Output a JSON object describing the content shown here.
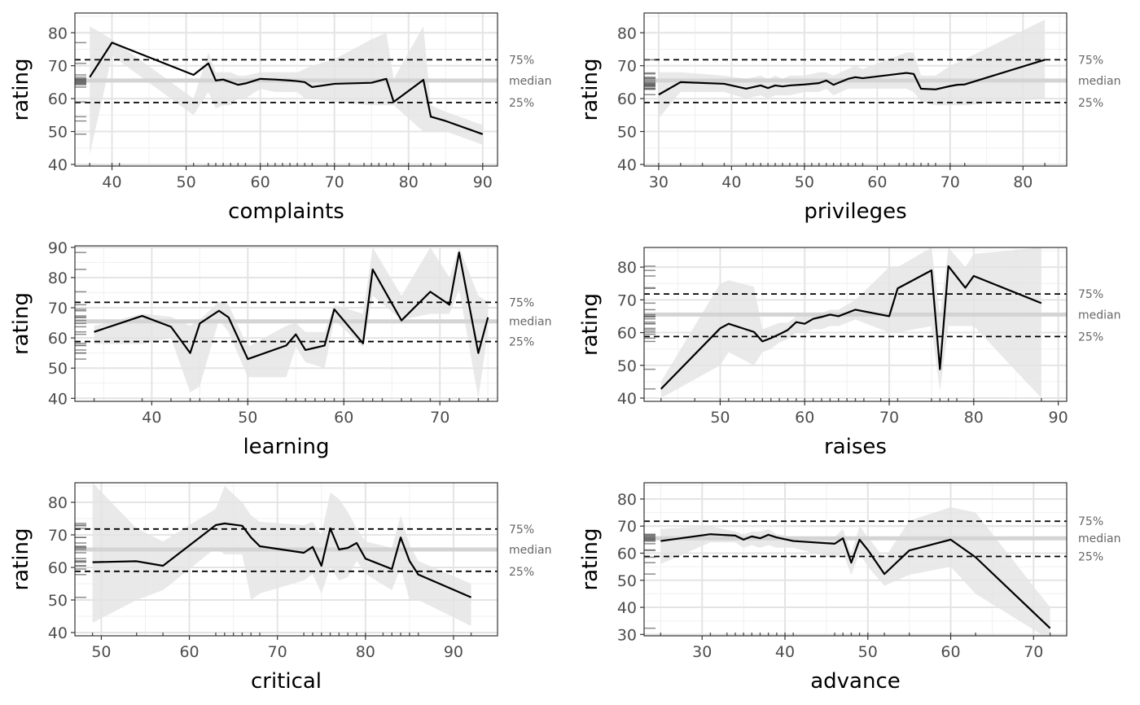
{
  "chart_data": [
    {
      "type": "line",
      "xlabel": "complaints",
      "ylabel": "rating",
      "xlim": [
        35,
        92
      ],
      "ylim": [
        39.5,
        86
      ],
      "xticks": [
        40,
        50,
        60,
        70,
        80,
        90
      ],
      "yticks": [
        40,
        50,
        60,
        70,
        80
      ],
      "ref_lines": [
        {
          "label": "75%",
          "value": 71.8
        },
        {
          "label": "median",
          "value": 65.5
        },
        {
          "label": "25%",
          "value": 58.8
        }
      ],
      "x": [
        37,
        40,
        51,
        53,
        54,
        55,
        56,
        57,
        58,
        60,
        62,
        64,
        65,
        66,
        67,
        70,
        75,
        77,
        78,
        82,
        83,
        85,
        90
      ],
      "y": [
        66.5,
        77,
        67.2,
        70.7,
        65.5,
        65.8,
        65,
        64.2,
        64.6,
        66,
        65.8,
        65.5,
        65.3,
        65,
        63.5,
        64.5,
        64.8,
        66,
        59,
        65.7,
        54.5,
        53.2,
        49.2
      ],
      "band_upper": [
        82,
        78,
        60,
        74,
        68,
        68,
        68,
        67,
        67,
        68,
        68,
        68,
        68,
        69,
        70,
        72,
        78,
        80,
        66,
        82,
        58,
        56,
        52
      ],
      "band_lower": [
        43,
        73,
        55,
        62,
        57,
        58,
        58,
        60,
        60,
        63,
        62,
        62,
        62,
        60,
        60,
        59,
        58,
        58,
        58,
        50,
        50,
        50,
        46
      ],
      "rug_x": [
        37,
        40,
        41,
        51,
        53,
        54,
        55,
        56,
        57,
        58,
        60,
        61,
        62,
        63,
        64,
        65,
        66,
        67,
        69,
        70,
        72,
        74,
        75,
        76,
        77,
        78,
        80,
        82,
        83,
        85,
        90
      ]
    },
    {
      "type": "line",
      "xlabel": "privileges",
      "ylabel": "rating",
      "xlim": [
        28,
        86
      ],
      "ylim": [
        39.5,
        86
      ],
      "xticks": [
        30,
        40,
        50,
        60,
        70,
        80
      ],
      "yticks": [
        40,
        50,
        60,
        70,
        80
      ],
      "ref_lines": [
        {
          "label": "75%",
          "value": 71.8
        },
        {
          "label": "median",
          "value": 65.5
        },
        {
          "label": "25%",
          "value": 58.8
        }
      ],
      "x": [
        30,
        33,
        39,
        42,
        44,
        45,
        46,
        47,
        48,
        50,
        52,
        53,
        54,
        56,
        57,
        58,
        64,
        65,
        66,
        68,
        70,
        71,
        72,
        83
      ],
      "y": [
        61.2,
        65,
        64.5,
        63,
        64,
        63.2,
        64,
        63.7,
        64,
        64.3,
        64.7,
        65.5,
        64.2,
        66,
        66.5,
        66.2,
        67.8,
        67.5,
        63,
        62.8,
        63.8,
        64.2,
        64.3,
        71.8
      ],
      "band_upper": [
        68,
        68,
        67,
        66,
        67,
        66,
        67,
        66,
        67,
        67,
        68,
        68,
        67,
        69,
        70,
        69,
        74,
        74,
        67,
        67,
        70,
        71,
        72,
        84
      ],
      "band_lower": [
        54,
        62,
        62,
        60,
        61,
        60,
        61,
        61,
        61,
        62,
        62,
        63,
        61,
        63,
        63,
        63,
        63,
        62,
        59,
        58,
        58,
        58,
        58,
        60
      ],
      "rug_x": [
        30,
        33,
        36,
        39,
        42,
        43,
        44,
        45,
        46,
        47,
        48,
        49,
        50,
        51,
        52,
        53,
        54,
        55,
        56,
        57,
        58,
        61,
        63,
        64,
        65,
        66,
        67,
        68,
        70,
        72,
        83
      ]
    },
    {
      "type": "line",
      "xlabel": "learning",
      "ylabel": "rating",
      "xlim": [
        32,
        76
      ],
      "ylim": [
        39,
        90.5
      ],
      "xticks": [
        40,
        50,
        60,
        70
      ],
      "yticks": [
        40,
        50,
        60,
        70,
        80,
        90
      ],
      "ref_lines": [
        {
          "label": "75%",
          "value": 71.8
        },
        {
          "label": "median",
          "value": 65.5
        },
        {
          "label": "25%",
          "value": 58.8
        }
      ],
      "x": [
        34,
        39,
        42,
        44,
        45,
        47,
        48,
        50,
        54,
        55,
        56,
        58,
        59,
        62,
        63,
        66,
        69,
        71,
        72,
        74,
        75
      ],
      "y": [
        62,
        67.3,
        63.7,
        55,
        64.8,
        69,
        66.8,
        53,
        57.5,
        61.2,
        56,
        57.5,
        69.5,
        58.2,
        82.7,
        65.8,
        75.3,
        71,
        88.3,
        55,
        66.8
      ],
      "band_upper": [
        64,
        68,
        67,
        64,
        66,
        72,
        71,
        57,
        64,
        65,
        62,
        62,
        71,
        68,
        90,
        74,
        90,
        80,
        90,
        74,
        72
      ],
      "band_lower": [
        58,
        58,
        60,
        42,
        44,
        66,
        62,
        47,
        47,
        57,
        52,
        50,
        66,
        57,
        74,
        66,
        68,
        68,
        76,
        40,
        62
      ],
      "rug_x": [
        34,
        39,
        42,
        44,
        45,
        47,
        48,
        49,
        50,
        54,
        55,
        56,
        57,
        58,
        59,
        60,
        62,
        63,
        64,
        66,
        67,
        69,
        71,
        72,
        74,
        75
      ]
    },
    {
      "type": "line",
      "xlabel": "raises",
      "ylabel": "rating",
      "xlim": [
        41,
        91
      ],
      "ylim": [
        39,
        86
      ],
      "xticks": [
        50,
        60,
        70,
        80,
        90
      ],
      "yticks": [
        40,
        50,
        60,
        70,
        80
      ],
      "ref_lines": [
        {
          "label": "75%",
          "value": 71.8
        },
        {
          "label": "median",
          "value": 65.5
        },
        {
          "label": "25%",
          "value": 58.8
        }
      ],
      "x": [
        43,
        50,
        51,
        54,
        55,
        56,
        57,
        58,
        59,
        60,
        61,
        62,
        63,
        64,
        66,
        70,
        71,
        75,
        76,
        77,
        79,
        80,
        88
      ],
      "y": [
        42.8,
        61.3,
        62.7,
        60.2,
        57.3,
        58.3,
        59.5,
        60.8,
        63.2,
        62.7,
        64.2,
        64.8,
        65.5,
        65,
        67,
        65,
        73.5,
        79,
        48.8,
        80.3,
        73.7,
        77.3,
        69
      ],
      "band_upper": [
        45,
        75,
        76,
        74,
        61,
        62,
        63,
        63,
        65,
        65,
        66,
        66,
        67,
        67,
        70,
        80,
        80,
        86,
        65,
        86,
        80,
        84,
        86
      ],
      "band_lower": [
        40,
        50,
        54,
        50,
        54,
        55,
        57,
        58,
        60,
        60,
        61,
        61,
        62,
        62,
        64,
        60,
        60,
        62,
        42,
        62,
        62,
        62,
        40
      ],
      "rug_x": [
        43,
        47,
        50,
        51,
        53,
        54,
        55,
        56,
        57,
        58,
        59,
        60,
        61,
        62,
        63,
        64,
        65,
        66,
        67,
        69,
        70,
        71,
        75,
        76,
        77,
        78,
        80,
        88
      ]
    },
    {
      "type": "line",
      "xlabel": "critical",
      "ylabel": "rating",
      "xlim": [
        47,
        95
      ],
      "ylim": [
        39,
        86
      ],
      "xticks": [
        50,
        60,
        70,
        80,
        90
      ],
      "yticks": [
        40,
        50,
        60,
        70,
        80
      ],
      "ref_lines": [
        {
          "label": "75%",
          "value": 71.8
        },
        {
          "label": "median",
          "value": 65.5
        },
        {
          "label": "25%",
          "value": 58.8
        }
      ],
      "x": [
        49,
        54,
        57,
        63,
        64,
        66,
        67,
        68,
        73,
        74,
        75,
        76,
        77,
        78,
        79,
        80,
        83,
        84,
        85,
        86,
        92
      ],
      "y": [
        61.6,
        61.9,
        60.5,
        73,
        73.5,
        72.8,
        69.2,
        66.5,
        64.5,
        66.3,
        60.5,
        72,
        65.5,
        66,
        67.5,
        62.7,
        59.5,
        69.2,
        62,
        57.8,
        50.8
      ],
      "band_upper": [
        86,
        72,
        68,
        78,
        85,
        80,
        76,
        74,
        73,
        74,
        70,
        83,
        81,
        77,
        72,
        68,
        66,
        76,
        67,
        62,
        55
      ],
      "band_lower": [
        43,
        50,
        53,
        66,
        64,
        64,
        50,
        52,
        56,
        58,
        52,
        60,
        56,
        57,
        62,
        58,
        53,
        60,
        50,
        50,
        42
      ],
      "rug_x": [
        49,
        54,
        57,
        63,
        64,
        65,
        66,
        67,
        68,
        73,
        74,
        75,
        76,
        77,
        78,
        79,
        80,
        82,
        83,
        84,
        85,
        86,
        92
      ]
    },
    {
      "type": "line",
      "xlabel": "advance",
      "ylabel": "rating",
      "xlim": [
        23,
        74
      ],
      "ylim": [
        29.5,
        86
      ],
      "xticks": [
        30,
        40,
        50,
        60,
        70
      ],
      "yticks": [
        30,
        40,
        50,
        60,
        70,
        80
      ],
      "ref_lines": [
        {
          "label": "75%",
          "value": 71.8
        },
        {
          "label": "median",
          "value": 65.5
        },
        {
          "label": "25%",
          "value": 58.8
        }
      ],
      "x": [
        25,
        31,
        34,
        35,
        36,
        37,
        38,
        39,
        41,
        46,
        47,
        48,
        49,
        50,
        52,
        55,
        60,
        63,
        72
      ],
      "y": [
        64.5,
        67,
        66.5,
        65,
        66.2,
        65.5,
        66.8,
        65.8,
        64.5,
        63.5,
        65.5,
        56.5,
        65,
        61.2,
        52.3,
        61,
        65,
        58.5,
        32.3
      ],
      "band_upper": [
        69,
        70,
        68,
        67,
        68,
        68,
        69,
        67,
        66,
        66,
        69,
        60,
        70,
        66,
        58,
        72,
        77,
        75,
        40
      ],
      "band_lower": [
        56,
        64,
        64,
        62,
        63,
        62,
        63,
        62,
        62,
        58,
        60,
        52,
        60,
        55,
        48,
        52,
        55,
        45,
        28
      ],
      "rug_x": [
        25,
        31,
        33,
        34,
        35,
        36,
        37,
        38,
        39,
        40,
        41,
        46,
        47,
        48,
        49,
        50,
        52,
        55,
        60,
        63,
        72
      ]
    }
  ]
}
